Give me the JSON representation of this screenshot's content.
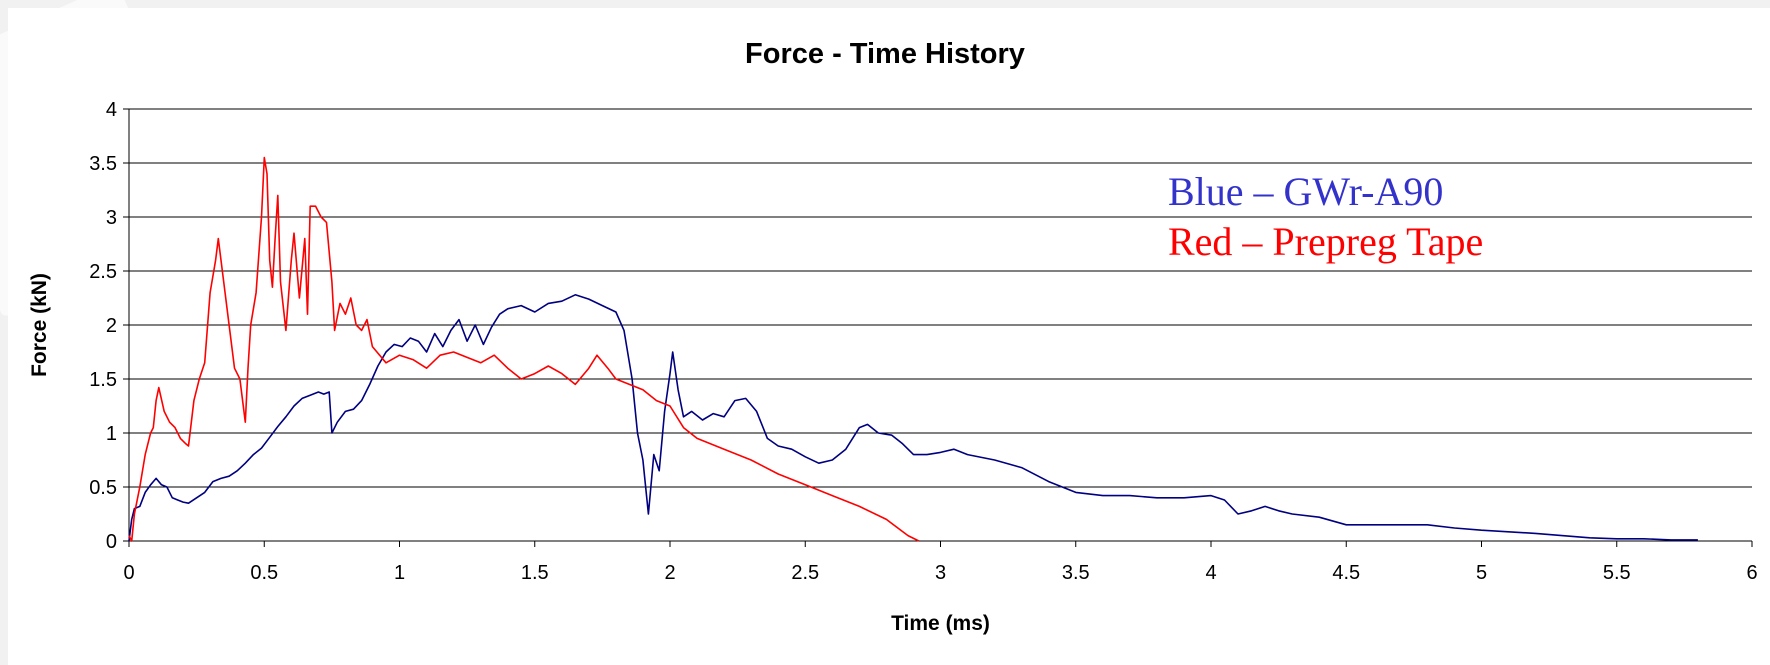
{
  "chart_data": {
    "type": "line",
    "title": "Force - Time History",
    "xlabel": "Time (ms)",
    "ylabel": "Force (kN)",
    "xlim": [
      0,
      6
    ],
    "ylim": [
      0,
      4
    ],
    "x_ticks": [
      "0",
      "0.5",
      "1",
      "1.5",
      "2",
      "2.5",
      "3",
      "3.5",
      "4",
      "4.5",
      "5",
      "5.5",
      "6"
    ],
    "y_ticks": [
      "0",
      "0.5",
      "1",
      "1.5",
      "2",
      "2.5",
      "3",
      "3.5",
      "4"
    ],
    "grid": "horizontal",
    "annotations": [
      {
        "text": "Blue – GWr-A90",
        "color": "#3333cc"
      },
      {
        "text": "Red – Prepreg Tape",
        "color": "#ff0000"
      }
    ],
    "series": [
      {
        "color": "#000080",
        "points": [
          [
            0.0,
            0.0
          ],
          [
            0.01,
            0.2
          ],
          [
            0.02,
            0.3
          ],
          [
            0.04,
            0.32
          ],
          [
            0.06,
            0.45
          ],
          [
            0.08,
            0.52
          ],
          [
            0.1,
            0.58
          ],
          [
            0.12,
            0.52
          ],
          [
            0.14,
            0.5
          ],
          [
            0.16,
            0.4
          ],
          [
            0.18,
            0.38
          ],
          [
            0.2,
            0.36
          ],
          [
            0.22,
            0.35
          ],
          [
            0.25,
            0.4
          ],
          [
            0.28,
            0.45
          ],
          [
            0.31,
            0.55
          ],
          [
            0.34,
            0.58
          ],
          [
            0.37,
            0.6
          ],
          [
            0.4,
            0.65
          ],
          [
            0.43,
            0.72
          ],
          [
            0.46,
            0.8
          ],
          [
            0.49,
            0.86
          ],
          [
            0.52,
            0.96
          ],
          [
            0.55,
            1.06
          ],
          [
            0.58,
            1.15
          ],
          [
            0.61,
            1.25
          ],
          [
            0.64,
            1.32
          ],
          [
            0.67,
            1.35
          ],
          [
            0.7,
            1.38
          ],
          [
            0.72,
            1.36
          ],
          [
            0.74,
            1.38
          ],
          [
            0.75,
            1.0
          ],
          [
            0.77,
            1.1
          ],
          [
            0.8,
            1.2
          ],
          [
            0.83,
            1.22
          ],
          [
            0.86,
            1.3
          ],
          [
            0.89,
            1.45
          ],
          [
            0.92,
            1.62
          ],
          [
            0.95,
            1.75
          ],
          [
            0.98,
            1.82
          ],
          [
            1.01,
            1.8
          ],
          [
            1.04,
            1.88
          ],
          [
            1.07,
            1.85
          ],
          [
            1.1,
            1.75
          ],
          [
            1.13,
            1.92
          ],
          [
            1.16,
            1.8
          ],
          [
            1.19,
            1.95
          ],
          [
            1.22,
            2.05
          ],
          [
            1.25,
            1.85
          ],
          [
            1.28,
            2.0
          ],
          [
            1.31,
            1.82
          ],
          [
            1.34,
            1.98
          ],
          [
            1.37,
            2.1
          ],
          [
            1.4,
            2.15
          ],
          [
            1.45,
            2.18
          ],
          [
            1.5,
            2.12
          ],
          [
            1.55,
            2.2
          ],
          [
            1.6,
            2.22
          ],
          [
            1.65,
            2.28
          ],
          [
            1.7,
            2.24
          ],
          [
            1.75,
            2.18
          ],
          [
            1.8,
            2.12
          ],
          [
            1.83,
            1.95
          ],
          [
            1.86,
            1.5
          ],
          [
            1.88,
            1.0
          ],
          [
            1.9,
            0.75
          ],
          [
            1.92,
            0.25
          ],
          [
            1.94,
            0.8
          ],
          [
            1.96,
            0.65
          ],
          [
            1.98,
            1.2
          ],
          [
            2.0,
            1.55
          ],
          [
            2.01,
            1.75
          ],
          [
            2.03,
            1.4
          ],
          [
            2.05,
            1.15
          ],
          [
            2.08,
            1.2
          ],
          [
            2.12,
            1.12
          ],
          [
            2.16,
            1.18
          ],
          [
            2.2,
            1.15
          ],
          [
            2.24,
            1.3
          ],
          [
            2.28,
            1.32
          ],
          [
            2.32,
            1.2
          ],
          [
            2.36,
            0.95
          ],
          [
            2.4,
            0.88
          ],
          [
            2.45,
            0.85
          ],
          [
            2.5,
            0.78
          ],
          [
            2.55,
            0.72
          ],
          [
            2.6,
            0.75
          ],
          [
            2.65,
            0.85
          ],
          [
            2.7,
            1.05
          ],
          [
            2.73,
            1.08
          ],
          [
            2.77,
            1.0
          ],
          [
            2.82,
            0.98
          ],
          [
            2.86,
            0.9
          ],
          [
            2.9,
            0.8
          ],
          [
            2.95,
            0.8
          ],
          [
            3.0,
            0.82
          ],
          [
            3.05,
            0.85
          ],
          [
            3.1,
            0.8
          ],
          [
            3.2,
            0.75
          ],
          [
            3.3,
            0.68
          ],
          [
            3.4,
            0.55
          ],
          [
            3.5,
            0.45
          ],
          [
            3.6,
            0.42
          ],
          [
            3.7,
            0.42
          ],
          [
            3.8,
            0.4
          ],
          [
            3.9,
            0.4
          ],
          [
            4.0,
            0.42
          ],
          [
            4.05,
            0.38
          ],
          [
            4.1,
            0.25
          ],
          [
            4.15,
            0.28
          ],
          [
            4.2,
            0.32
          ],
          [
            4.25,
            0.28
          ],
          [
            4.3,
            0.25
          ],
          [
            4.4,
            0.22
          ],
          [
            4.5,
            0.15
          ],
          [
            4.7,
            0.15
          ],
          [
            4.8,
            0.15
          ],
          [
            4.9,
            0.12
          ],
          [
            5.0,
            0.1
          ],
          [
            5.2,
            0.07
          ],
          [
            5.4,
            0.03
          ],
          [
            5.5,
            0.02
          ],
          [
            5.6,
            0.02
          ],
          [
            5.7,
            0.01
          ],
          [
            5.8,
            0.01
          ]
        ]
      },
      {
        "color": "#ff0000",
        "points": [
          [
            0.0,
            0.05
          ],
          [
            0.01,
            0.0
          ],
          [
            0.02,
            0.25
          ],
          [
            0.04,
            0.5
          ],
          [
            0.06,
            0.8
          ],
          [
            0.08,
            1.0
          ],
          [
            0.09,
            1.05
          ],
          [
            0.1,
            1.3
          ],
          [
            0.11,
            1.42
          ],
          [
            0.13,
            1.2
          ],
          [
            0.15,
            1.1
          ],
          [
            0.17,
            1.05
          ],
          [
            0.19,
            0.95
          ],
          [
            0.21,
            0.9
          ],
          [
            0.22,
            0.88
          ],
          [
            0.24,
            1.3
          ],
          [
            0.26,
            1.5
          ],
          [
            0.28,
            1.65
          ],
          [
            0.3,
            2.3
          ],
          [
            0.32,
            2.6
          ],
          [
            0.33,
            2.8
          ],
          [
            0.35,
            2.4
          ],
          [
            0.37,
            2.0
          ],
          [
            0.39,
            1.6
          ],
          [
            0.41,
            1.5
          ],
          [
            0.42,
            1.3
          ],
          [
            0.43,
            1.1
          ],
          [
            0.44,
            1.6
          ],
          [
            0.45,
            2.0
          ],
          [
            0.47,
            2.3
          ],
          [
            0.49,
            3.0
          ],
          [
            0.5,
            3.55
          ],
          [
            0.51,
            3.4
          ],
          [
            0.52,
            2.6
          ],
          [
            0.53,
            2.35
          ],
          [
            0.54,
            2.8
          ],
          [
            0.55,
            3.2
          ],
          [
            0.56,
            2.4
          ],
          [
            0.58,
            1.95
          ],
          [
            0.6,
            2.6
          ],
          [
            0.61,
            2.85
          ],
          [
            0.63,
            2.25
          ],
          [
            0.65,
            2.8
          ],
          [
            0.66,
            2.1
          ],
          [
            0.67,
            3.1
          ],
          [
            0.69,
            3.1
          ],
          [
            0.71,
            3.0
          ],
          [
            0.73,
            2.95
          ],
          [
            0.75,
            2.4
          ],
          [
            0.76,
            1.95
          ],
          [
            0.78,
            2.2
          ],
          [
            0.8,
            2.1
          ],
          [
            0.82,
            2.25
          ],
          [
            0.84,
            2.0
          ],
          [
            0.86,
            1.95
          ],
          [
            0.88,
            2.05
          ],
          [
            0.9,
            1.8
          ],
          [
            0.95,
            1.65
          ],
          [
            1.0,
            1.72
          ],
          [
            1.05,
            1.68
          ],
          [
            1.1,
            1.6
          ],
          [
            1.15,
            1.72
          ],
          [
            1.2,
            1.75
          ],
          [
            1.25,
            1.7
          ],
          [
            1.3,
            1.65
          ],
          [
            1.35,
            1.72
          ],
          [
            1.4,
            1.6
          ],
          [
            1.45,
            1.5
          ],
          [
            1.5,
            1.55
          ],
          [
            1.55,
            1.62
          ],
          [
            1.6,
            1.55
          ],
          [
            1.65,
            1.45
          ],
          [
            1.7,
            1.6
          ],
          [
            1.73,
            1.72
          ],
          [
            1.77,
            1.6
          ],
          [
            1.8,
            1.5
          ],
          [
            1.85,
            1.45
          ],
          [
            1.9,
            1.4
          ],
          [
            1.95,
            1.3
          ],
          [
            2.0,
            1.25
          ],
          [
            2.05,
            1.05
          ],
          [
            2.1,
            0.95
          ],
          [
            2.2,
            0.85
          ],
          [
            2.3,
            0.75
          ],
          [
            2.4,
            0.62
          ],
          [
            2.5,
            0.52
          ],
          [
            2.6,
            0.42
          ],
          [
            2.7,
            0.32
          ],
          [
            2.8,
            0.2
          ],
          [
            2.88,
            0.05
          ],
          [
            2.92,
            0.0
          ]
        ]
      }
    ]
  }
}
